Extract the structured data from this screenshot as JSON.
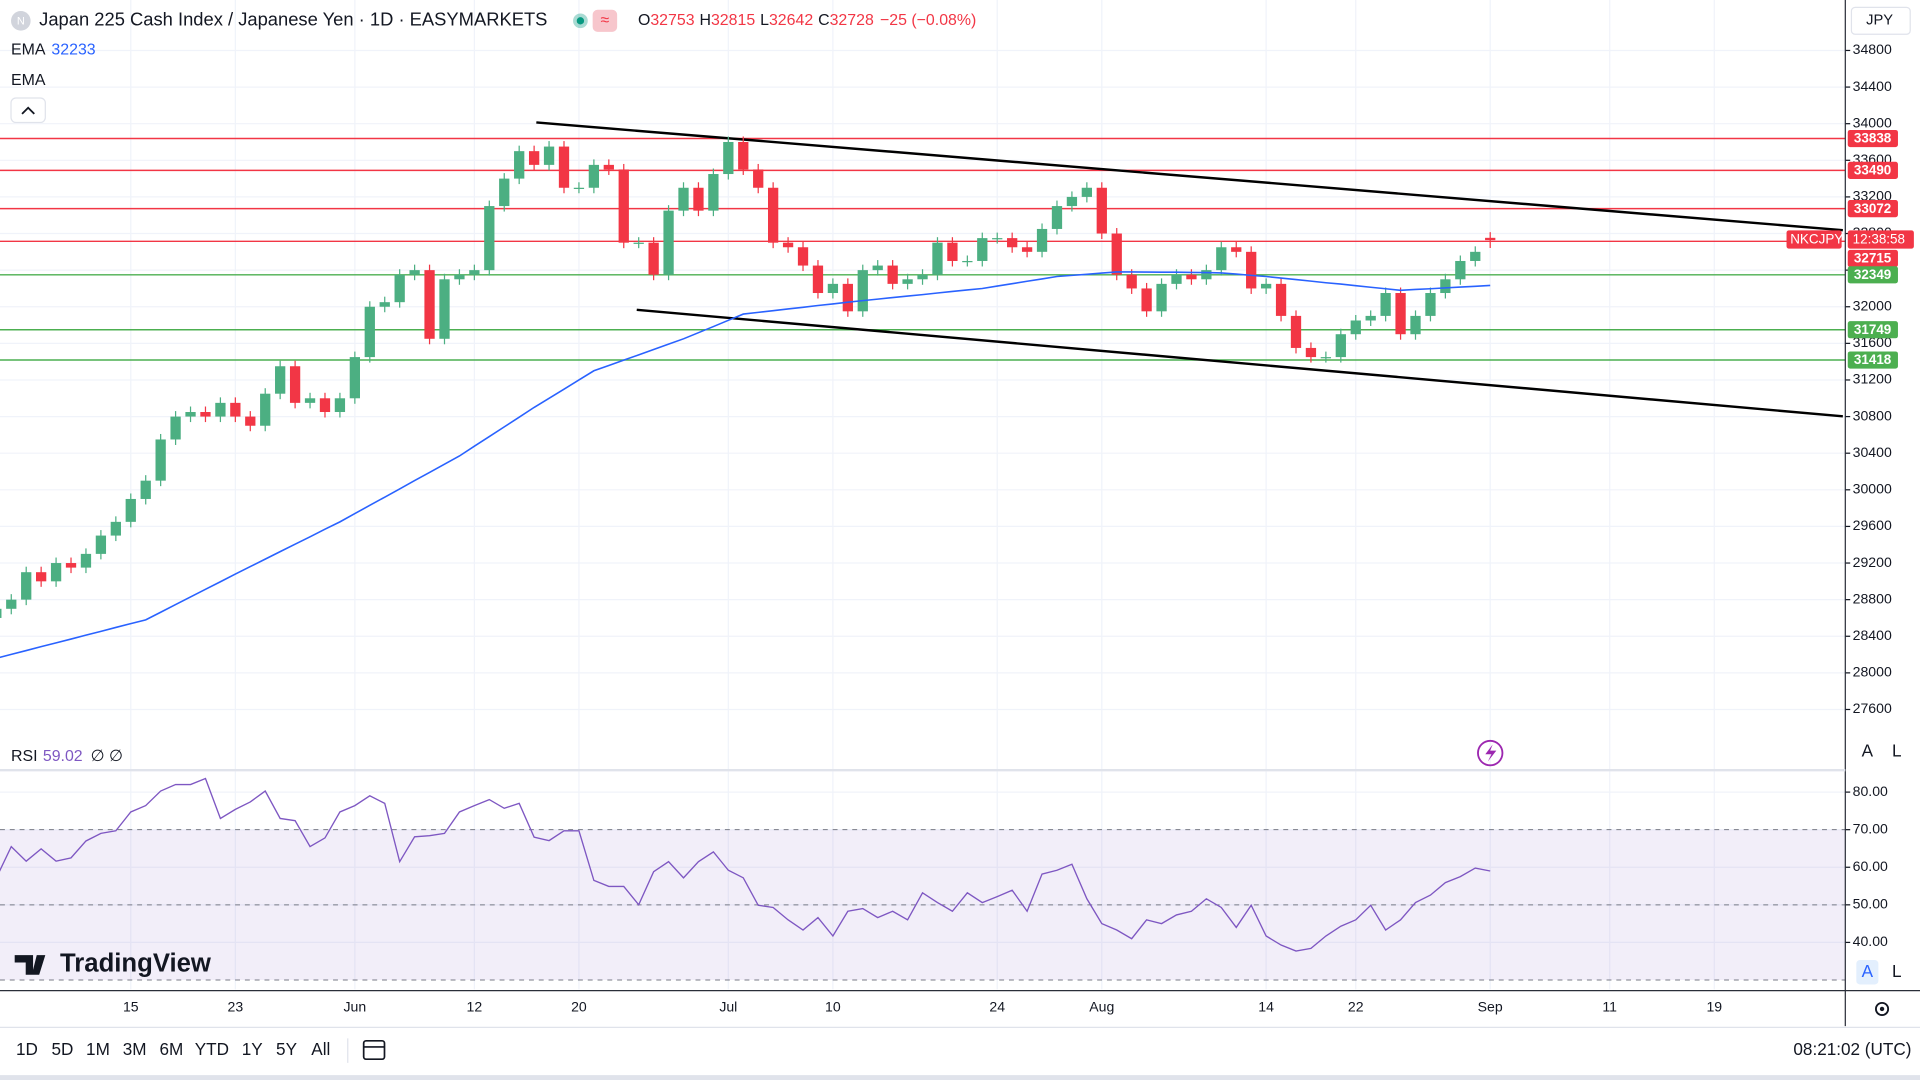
{
  "header": {
    "title": "Japan 225 Cash Index / Japanese Yen · 1D · EASYMARKETS",
    "ohlc_letters": [
      "O",
      "H",
      "L",
      "C"
    ],
    "change": "−25 (−0.08%)",
    "indicator_2": "EMA",
    "currency": "JPY"
  },
  "toolbar": {
    "ranges": [
      "1D",
      "5D",
      "1M",
      "3M",
      "6M",
      "YTD",
      "1Y",
      "5Y",
      "All"
    ],
    "time": "08:21:02 (UTC)",
    "scale_buttons": [
      "A",
      "L"
    ],
    "logo": "TradingView"
  },
  "chart_data": [
    {
      "type": "candlestick",
      "symbol_label": "NKCJPY",
      "countdown": "12:38:58",
      "up_color": "#4caf82",
      "down_color": "#f23645",
      "categories": [
        null,
        null,
        null,
        null,
        null,
        null,
        null,
        null,
        null,
        "15",
        null,
        null,
        null,
        null,
        null,
        null,
        "23",
        null,
        null,
        null,
        null,
        null,
        null,
        null,
        "Jun",
        null,
        null,
        null,
        null,
        null,
        null,
        null,
        "12",
        null,
        null,
        null,
        null,
        null,
        null,
        "20",
        null,
        null,
        null,
        null,
        null,
        null,
        null,
        null,
        null,
        "Jul",
        null,
        null,
        null,
        null,
        null,
        null,
        "10",
        null,
        null,
        null,
        null,
        null,
        null,
        null,
        null,
        null,
        null,
        "24",
        null,
        null,
        null,
        null,
        null,
        null,
        "Aug",
        null,
        null,
        null,
        null,
        null,
        null,
        null,
        null,
        null,
        null,
        "14",
        null,
        null,
        null,
        null,
        null,
        "22",
        null,
        null,
        null,
        null,
        null,
        null,
        null,
        null,
        "Sep",
        null,
        null,
        null,
        null,
        null,
        null,
        null,
        "11",
        null,
        null,
        null,
        null,
        null,
        null,
        "19"
      ],
      "open": [
        28600,
        28700,
        28800,
        29100,
        29000,
        29200,
        29150,
        29300,
        29500,
        29650,
        29900,
        30100,
        30550,
        30800,
        30850,
        30800,
        30950,
        30800,
        30700,
        31050,
        31350,
        30950,
        31000,
        30850,
        31000,
        31450,
        32000,
        32050,
        32350,
        32400,
        31650,
        32300,
        32350,
        32400,
        33100,
        33400,
        33700,
        33550,
        33750,
        33300,
        33300,
        33550,
        33500,
        32700,
        32700,
        32350,
        33050,
        33300,
        33050,
        33450,
        33800,
        33500,
        33300,
        32700,
        32650,
        32450,
        32150,
        32250,
        31950,
        32400,
        32450,
        32250,
        32300,
        32350,
        32700,
        32500,
        32500,
        32750,
        32750,
        32650,
        32600,
        32850,
        33100,
        33200,
        33300,
        32800,
        32350,
        32200,
        31950,
        32250,
        32350,
        32300,
        32400,
        32650,
        32600,
        32200,
        32250,
        31900,
        31550,
        31450,
        31450,
        31700,
        31850,
        31900,
        32150,
        31700,
        31900,
        32150,
        32300,
        32500,
        32753,
        null,
        null,
        null,
        null,
        null,
        null,
        null,
        null,
        null,
        null,
        null,
        null,
        null,
        null,
        null
      ],
      "high": [
        28760,
        28860,
        29160,
        29160,
        29260,
        29260,
        29360,
        29560,
        29710,
        29960,
        30160,
        30610,
        30860,
        30910,
        30910,
        31010,
        31010,
        30860,
        31110,
        31410,
        31410,
        31060,
        31060,
        31060,
        31510,
        32060,
        32110,
        32410,
        32460,
        32460,
        32360,
        32410,
        32460,
        33160,
        33460,
        33760,
        33760,
        33810,
        33810,
        33360,
        33610,
        33610,
        33560,
        32760,
        32760,
        33110,
        33360,
        33360,
        33510,
        33860,
        33860,
        33560,
        33360,
        32760,
        32710,
        32510,
        32310,
        32310,
        32460,
        32510,
        32510,
        32360,
        32410,
        32760,
        32760,
        32560,
        32810,
        32810,
        32810,
        32710,
        32910,
        33160,
        33260,
        33360,
        33360,
        32860,
        32410,
        32260,
        32310,
        32410,
        32410,
        32460,
        32710,
        32710,
        32660,
        32310,
        32310,
        31960,
        31610,
        31510,
        31760,
        31910,
        31960,
        32210,
        32210,
        31960,
        32210,
        32360,
        32560,
        32660,
        32815,
        null,
        null,
        null,
        null,
        null,
        null,
        null,
        null,
        null,
        null,
        null,
        null,
        null,
        null,
        null
      ],
      "low": [
        28540,
        28640,
        28740,
        28940,
        28940,
        29090,
        29090,
        29240,
        29440,
        29590,
        29840,
        30040,
        30490,
        30740,
        30740,
        30740,
        30740,
        30640,
        30640,
        30990,
        30890,
        30890,
        30790,
        30790,
        30940,
        31390,
        31940,
        31990,
        32290,
        31590,
        31590,
        32240,
        32290,
        32340,
        33040,
        33340,
        33490,
        33490,
        33240,
        33240,
        33240,
        33440,
        32640,
        32640,
        32290,
        32290,
        32990,
        32990,
        32990,
        33390,
        33440,
        33240,
        32640,
        32590,
        32390,
        32090,
        32090,
        31890,
        31890,
        32340,
        32190,
        32190,
        32240,
        32290,
        32440,
        32440,
        32440,
        32690,
        32590,
        32540,
        32540,
        32790,
        33040,
        33140,
        32740,
        32290,
        32140,
        31890,
        31890,
        32190,
        32240,
        32240,
        32340,
        32540,
        32140,
        32140,
        31840,
        31490,
        31390,
        31390,
        31390,
        31640,
        31790,
        31840,
        31640,
        31640,
        31840,
        32090,
        32240,
        32440,
        32642,
        null,
        null,
        null,
        null,
        null,
        null,
        null,
        null,
        null,
        null,
        null,
        null,
        null,
        null,
        null
      ],
      "close": [
        28700,
        28800,
        29100,
        29000,
        29200,
        29150,
        29300,
        29500,
        29650,
        29900,
        30100,
        30550,
        30800,
        30850,
        30800,
        30950,
        30800,
        30700,
        31050,
        31350,
        30950,
        31000,
        30850,
        31000,
        31450,
        32000,
        32050,
        32350,
        32400,
        31650,
        32300,
        32350,
        32400,
        33100,
        33400,
        33700,
        33550,
        33750,
        33300,
        33300,
        33550,
        33500,
        32700,
        32700,
        32350,
        33050,
        33300,
        33050,
        33450,
        33800,
        33500,
        33300,
        32700,
        32650,
        32450,
        32150,
        32250,
        31950,
        32400,
        32450,
        32250,
        32300,
        32350,
        32700,
        32500,
        32500,
        32750,
        32750,
        32650,
        32600,
        32850,
        33100,
        33200,
        33300,
        32800,
        32350,
        32200,
        31950,
        32250,
        32350,
        32300,
        32400,
        32650,
        32600,
        32200,
        32250,
        31900,
        31550,
        31450,
        31450,
        31700,
        31850,
        31900,
        32150,
        31700,
        31900,
        32150,
        32300,
        32500,
        32600,
        32728,
        null,
        null,
        null,
        null,
        null,
        null,
        null,
        null,
        null,
        null,
        null,
        null,
        null,
        null,
        null
      ],
      "series": [
        {
          "name": "EMA",
          "color": "#2962ff",
          "values": [
            28160,
            28202,
            28244,
            28286,
            28328,
            28370,
            28412,
            28454,
            28496,
            28538,
            28580,
            28663,
            28746,
            28830,
            28913,
            28996,
            29080,
            29161,
            29243,
            29324,
            29406,
            29487,
            29569,
            29650,
            29740,
            29830,
            29920,
            30010,
            30100,
            30190,
            30280,
            30370,
            30476,
            30582,
            30688,
            30794,
            30900,
            31000,
            31100,
            31200,
            31300,
            31358,
            31417,
            31475,
            31533,
            31592,
            31650,
            31717,
            31784,
            31852,
            31920,
            31939,
            31957,
            31976,
            31994,
            32013,
            32031,
            32050,
            32067,
            32083,
            32100,
            32117,
            32133,
            32150,
            32167,
            32183,
            32200,
            32226,
            32252,
            32278,
            32304,
            32330,
            32343,
            32355,
            32368,
            32380,
            32380,
            32379,
            32378,
            32377,
            32375,
            32373,
            32370,
            32357,
            32343,
            32330,
            32313,
            32297,
            32280,
            32263,
            32247,
            32230,
            32213,
            32197,
            32180,
            32189,
            32197,
            32206,
            32215,
            32224,
            32233,
            null,
            null,
            null,
            null,
            null,
            null,
            null,
            null,
            null,
            null,
            null,
            null,
            null,
            null,
            null
          ]
        }
      ],
      "levels": [
        {
          "value": 33838,
          "color": "#f23645"
        },
        {
          "value": 33490,
          "color": "#f23645"
        },
        {
          "value": 33072,
          "color": "#f23645"
        },
        {
          "value": 32715,
          "color": "#f23645"
        },
        {
          "value": 32349,
          "color": "#4caf50"
        },
        {
          "value": 31749,
          "color": "#4caf50"
        },
        {
          "value": 31418,
          "color": "#4caf50"
        }
      ],
      "ylim": [
        26950,
        34950
      ],
      "yticks": [
        27600,
        28000,
        28400,
        28800,
        29200,
        29600,
        30000,
        30400,
        30800,
        31200,
        31600,
        32000,
        32400,
        32800,
        33200,
        33600,
        34000,
        34400,
        34800
      ],
      "grid": true
    },
    {
      "type": "line",
      "params": [
        "∅",
        "∅"
      ],
      "series": [
        {
          "name": "RSI",
          "color": "#7e57c2",
          "values": [
            57.2,
            65.5,
            61.6,
            64.9,
            61.6,
            62.5,
            67,
            69,
            69.7,
            74.7,
            76.4,
            80.3,
            82,
            82,
            83.6,
            73,
            75.4,
            77.4,
            80.3,
            73,
            72.4,
            65.5,
            67.8,
            74.7,
            76.4,
            79,
            77,
            61.5,
            68.1,
            68.4,
            69,
            74.7,
            76.4,
            78,
            75.7,
            77,
            68,
            67.1,
            69.7,
            69.7,
            56.5,
            54.9,
            54.9,
            50,
            58.8,
            61.5,
            57.2,
            61.5,
            64.1,
            59.2,
            57.2,
            49.9,
            49.3,
            46,
            43.3,
            46.6,
            41.7,
            48.3,
            49,
            46.6,
            48.3,
            46,
            53.2,
            50.6,
            48.3,
            53.2,
            50.6,
            52.2,
            53.9,
            48.3,
            58.2,
            59.2,
            60.8,
            51.6,
            45,
            43.3,
            41,
            46,
            45,
            47.3,
            48.3,
            51.6,
            49.3,
            44,
            49.9,
            41.7,
            39.3,
            37.7,
            38.4,
            41.7,
            44.3,
            46,
            49.9,
            43.3,
            46,
            50.6,
            52.6,
            55.9,
            57.5,
            59.8,
            59.02,
            null,
            null,
            null,
            null,
            null,
            null,
            null,
            null,
            null,
            null,
            null,
            null,
            null,
            null,
            null
          ]
        }
      ],
      "levels": [
        70,
        50,
        30
      ],
      "band_color": "#7e57c2",
      "ylim": [
        27.5,
        85.5
      ],
      "yticks": [
        {
          "value": 40,
          "label": "40.00"
        },
        {
          "value": 50,
          "label": "50.00"
        },
        {
          "value": 60,
          "label": "60.00"
        },
        {
          "value": 70,
          "label": "70.00"
        },
        {
          "value": 80,
          "label": "80.00"
        }
      ],
      "grid": true
    }
  ]
}
